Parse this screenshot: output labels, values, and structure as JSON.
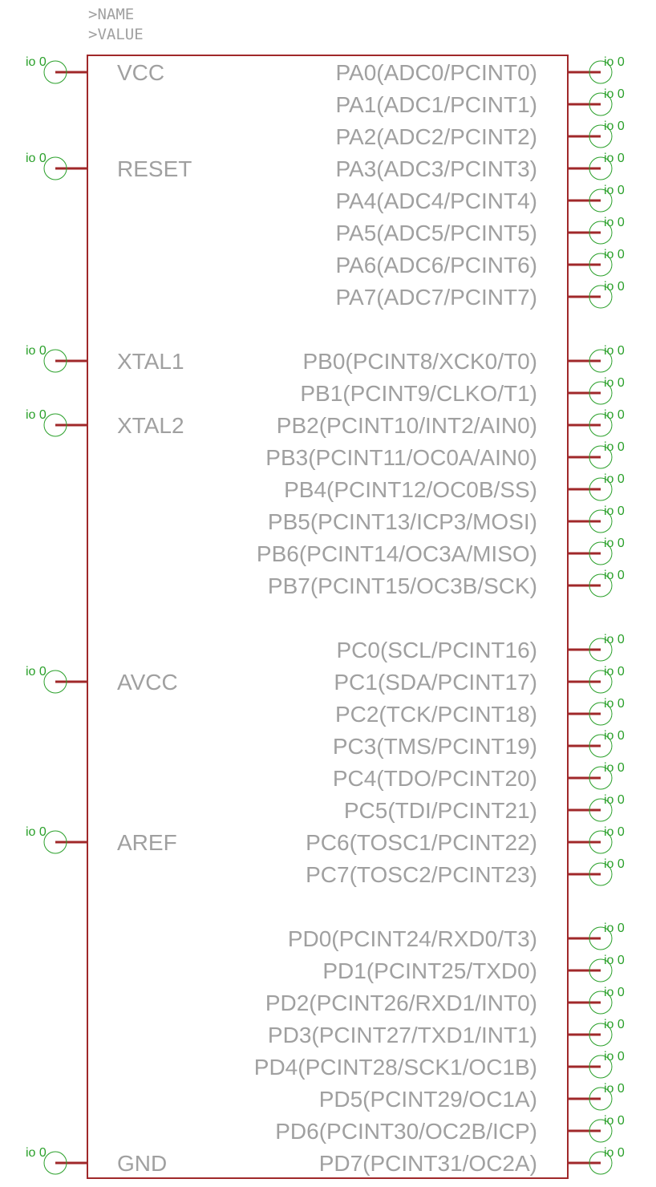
{
  "component": {
    "name_attr": ">NAME",
    "value_attr": ">VALUE"
  },
  "colors": {
    "body_outline": "#a0282a",
    "pin_line": "#a0282a",
    "pin_text": "#a0a0a0",
    "connection_marker": "#2aa02a"
  },
  "pin_marker_text": "io 0",
  "left_pins": [
    {
      "label": "VCC",
      "row": 0
    },
    {
      "label": "RESET",
      "row": 3
    },
    {
      "label": "XTAL1",
      "row": 9
    },
    {
      "label": "XTAL2",
      "row": 11
    },
    {
      "label": "AVCC",
      "row": 19
    },
    {
      "label": "AREF",
      "row": 24
    },
    {
      "label": "GND",
      "row": 34
    }
  ],
  "right_pins": [
    {
      "label": "PA0(ADC0/PCINT0)",
      "row": 0
    },
    {
      "label": "PA1(ADC1/PCINT1)",
      "row": 1
    },
    {
      "label": "PA2(ADC2/PCINT2)",
      "row": 2
    },
    {
      "label": "PA3(ADC3/PCINT3)",
      "row": 3
    },
    {
      "label": "PA4(ADC4/PCINT4)",
      "row": 4
    },
    {
      "label": "PA5(ADC5/PCINT5)",
      "row": 5
    },
    {
      "label": "PA6(ADC6/PCINT6)",
      "row": 6
    },
    {
      "label": "PA7(ADC7/PCINT7)",
      "row": 7
    },
    {
      "label": "PB0(PCINT8/XCK0/T0)",
      "row": 9
    },
    {
      "label": "PB1(PCINT9/CLKO/T1)",
      "row": 10
    },
    {
      "label": "PB2(PCINT10/INT2/AIN0)",
      "row": 11
    },
    {
      "label": "PB3(PCINT11/OC0A/AIN0)",
      "row": 12
    },
    {
      "label": "PB4(PCINT12/OC0B/SS)",
      "row": 13
    },
    {
      "label": "PB5(PCINT13/ICP3/MOSI)",
      "row": 14
    },
    {
      "label": "PB6(PCINT14/OC3A/MISO)",
      "row": 15
    },
    {
      "label": "PB7(PCINT15/OC3B/SCK)",
      "row": 16
    },
    {
      "label": "PC0(SCL/PCINT16)",
      "row": 18
    },
    {
      "label": "PC1(SDA/PCINT17)",
      "row": 19
    },
    {
      "label": "PC2(TCK/PCINT18)",
      "row": 20
    },
    {
      "label": "PC3(TMS/PCINT19)",
      "row": 21
    },
    {
      "label": "PC4(TDO/PCINT20)",
      "row": 22
    },
    {
      "label": "PC5(TDI/PCINT21)",
      "row": 23
    },
    {
      "label": "PC6(TOSC1/PCINT22)",
      "row": 24
    },
    {
      "label": "PC7(TOSC2/PCINT23)",
      "row": 25
    },
    {
      "label": "PD0(PCINT24/RXD0/T3)",
      "row": 27
    },
    {
      "label": "PD1(PCINT25/TXD0)",
      "row": 28
    },
    {
      "label": "PD2(PCINT26/RXD1/INT0)",
      "row": 29
    },
    {
      "label": "PD3(PCINT27/TXD1/INT1)",
      "row": 30
    },
    {
      "label": "PD4(PCINT28/SCK1/OC1B)",
      "row": 31
    },
    {
      "label": "PD5(PCINT29/OC1A)",
      "row": 32
    },
    {
      "label": "PD6(PCINT30/OC2B/ICP)",
      "row": 33
    },
    {
      "label": "PD7(PCINT31/OC2A)",
      "row": 34
    }
  ]
}
